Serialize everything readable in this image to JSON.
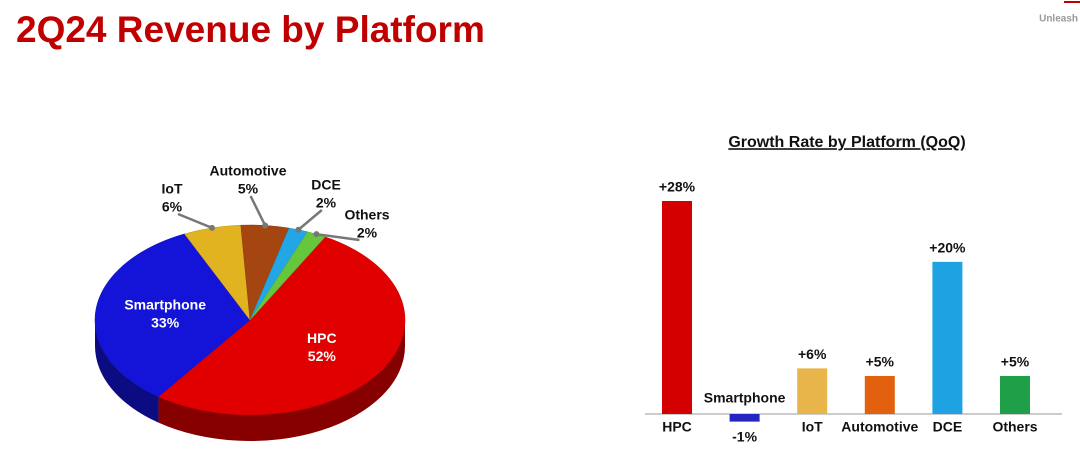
{
  "header": {
    "title": "2Q24 Revenue by Platform",
    "tagline": "Unleash"
  },
  "chart_data": [
    {
      "type": "pie",
      "categories": [
        "HPC",
        "Smartphone",
        "IoT",
        "Automotive",
        "DCE",
        "Others"
      ],
      "values": [
        52,
        33,
        6,
        5,
        2,
        2
      ],
      "value_labels": [
        "52%",
        "33%",
        "6%",
        "5%",
        "2%",
        "2%"
      ],
      "colors": [
        "#e00000",
        "#1414d8",
        "#e2b321",
        "#a5450f",
        "#22a6e6",
        "#66c63c"
      ]
    },
    {
      "type": "bar",
      "title": "Growth Rate by Platform (QoQ)",
      "categories": [
        "HPC",
        "Smartphone",
        "IoT",
        "Automotive",
        "DCE",
        "Others"
      ],
      "values": [
        28,
        -1,
        6,
        5,
        20,
        5
      ],
      "value_labels": [
        "+28%",
        "-1%",
        "+6%",
        "+5%",
        "+20%",
        "+5%"
      ],
      "colors": [
        "#d40000",
        "#2424c0",
        "#e8b54a",
        "#e2600e",
        "#1ea2e2",
        "#1fa048"
      ]
    }
  ]
}
